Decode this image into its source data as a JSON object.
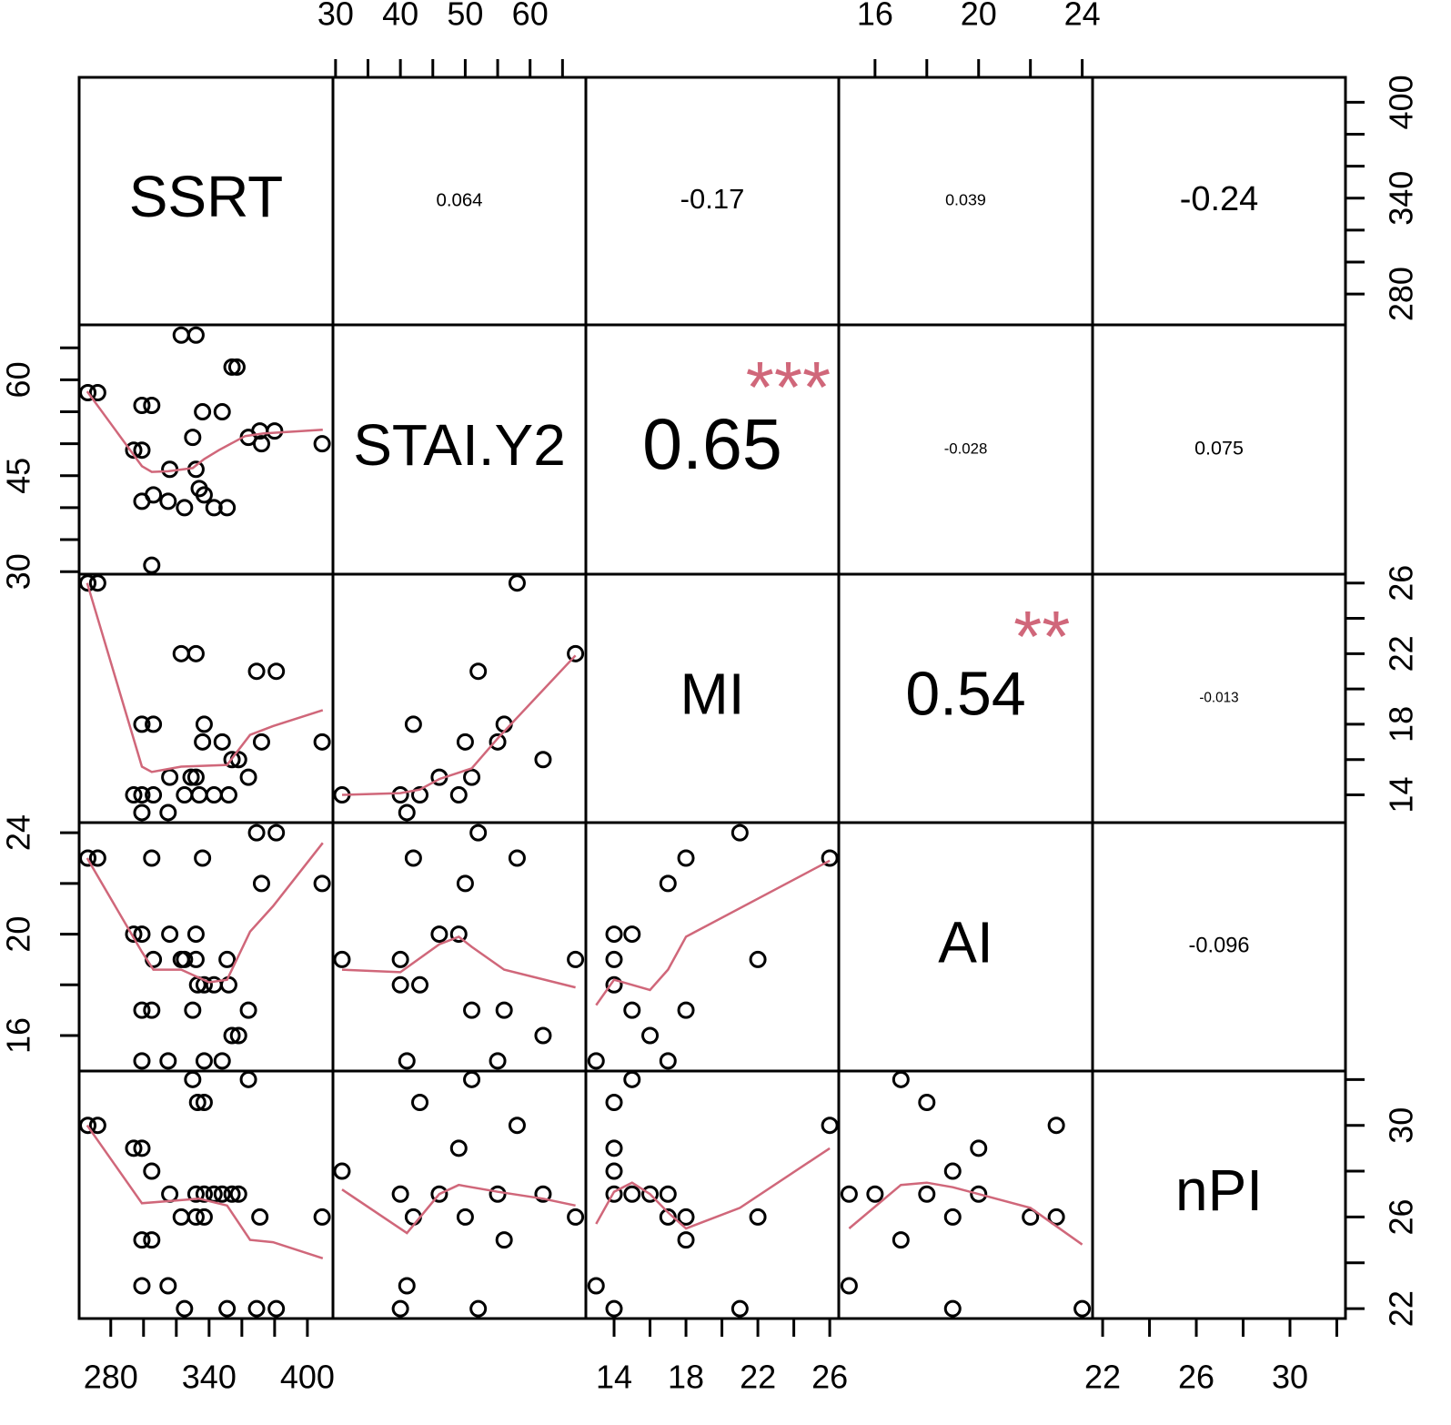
{
  "chart_data": {
    "type": "scatter-matrix",
    "smooth_color": "#d0677a",
    "star_color": "#d0677a",
    "variables": [
      {
        "name": "SSRT",
        "lim": [
          260.7,
          415.6
        ],
        "axes": [
          {
            "side": "bottom",
            "ticks": [
              280,
              340,
              400
            ],
            "minor_ticks": [
              300,
              320,
              360,
              380
            ]
          },
          {
            "side": "right",
            "ticks": [
              280,
              340,
              400
            ],
            "minor_ticks": [
              300,
              320,
              360,
              380
            ]
          }
        ]
      },
      {
        "name": "STAI.Y2",
        "lim": [
          29.6,
          68.6
        ],
        "axes": [
          {
            "side": "top",
            "ticks": [
              30,
              40,
              50,
              60
            ],
            "minor_ticks": [
              35,
              45,
              55,
              65
            ]
          },
          {
            "side": "left",
            "ticks": [
              30,
              45,
              60
            ],
            "minor_ticks": [
              35,
              40,
              50,
              55,
              65
            ]
          }
        ]
      },
      {
        "name": "MI",
        "lim": [
          12.43,
          26.5
        ],
        "axes": [
          {
            "side": "bottom",
            "ticks": [
              14,
              18,
              22,
              26
            ],
            "minor_ticks": [
              16,
              20,
              24
            ]
          },
          {
            "side": "right",
            "ticks": [
              14,
              18,
              22,
              26
            ],
            "minor_ticks": [
              16,
              20,
              24
            ]
          }
        ]
      },
      {
        "name": "AI",
        "lim": [
          14.6,
          24.4
        ],
        "axes": [
          {
            "side": "top",
            "ticks": [
              16,
              20,
              24
            ],
            "minor_ticks": [
              18,
              22
            ]
          },
          {
            "side": "left",
            "ticks": [
              16,
              20,
              24
            ],
            "minor_ticks": [
              18,
              22
            ]
          }
        ]
      },
      {
        "name": "nPI",
        "lim": [
          21.57,
          32.37
        ],
        "axes": [
          {
            "side": "bottom",
            "ticks": [
              22,
              26,
              30
            ],
            "minor_ticks": [
              24,
              28,
              32
            ]
          },
          {
            "side": "right",
            "ticks": [
              22,
              26,
              30
            ],
            "minor_ticks": [
              24,
              28,
              32
            ]
          }
        ]
      }
    ],
    "upper": [
      {
        "row": 0,
        "col": 1,
        "r": 0.064
      },
      {
        "row": 0,
        "col": 2,
        "r": -0.17
      },
      {
        "row": 0,
        "col": 3,
        "r": 0.039
      },
      {
        "row": 0,
        "col": 4,
        "r": -0.24
      },
      {
        "row": 1,
        "col": 2,
        "r": 0.65,
        "stars": "***"
      },
      {
        "row": 1,
        "col": 3,
        "r": -0.028
      },
      {
        "row": 1,
        "col": 4,
        "r": 0.075
      },
      {
        "row": 2,
        "col": 3,
        "r": 0.54,
        "stars": "**"
      },
      {
        "row": 2,
        "col": 4,
        "r": -0.013
      },
      {
        "row": 3,
        "col": 4,
        "r": -0.096
      }
    ],
    "lower": [
      {
        "row": 1,
        "col": 0,
        "x": [
          266,
          272,
          294,
          299,
          299,
          305,
          299,
          306,
          316,
          315,
          323,
          332,
          325,
          330,
          332,
          334,
          336,
          337,
          343,
          348,
          351,
          354,
          357,
          364,
          371,
          372,
          380,
          409,
          305
        ],
        "y": [
          58,
          58,
          49,
          49,
          56,
          56,
          41,
          42,
          46,
          41,
          67,
          67,
          40,
          51,
          46,
          43,
          55,
          42,
          40,
          55,
          40,
          62,
          62,
          51,
          52,
          50,
          52,
          50,
          31
        ],
        "smooth_x": [
          265.6,
          299,
          305,
          315,
          330,
          337,
          346,
          362,
          373,
          409.4
        ],
        "smooth_y": [
          58.2,
          46.5,
          45.6,
          45.7,
          46.2,
          47.6,
          49,
          51.2,
          51.6,
          52.2
        ]
      },
      {
        "row": 2,
        "col": 0,
        "x": [
          266,
          272,
          294,
          299,
          306,
          299,
          315,
          299,
          306,
          323,
          332,
          316,
          329,
          332,
          325,
          337,
          336,
          334,
          343,
          348,
          352,
          354,
          358,
          364,
          369,
          381,
          372,
          409
        ],
        "y": [
          26,
          26,
          14,
          14,
          14,
          13,
          13,
          18,
          18,
          22,
          22,
          15,
          15,
          15,
          14,
          18,
          17,
          14,
          14,
          17,
          14,
          16,
          16,
          15,
          21,
          21,
          17,
          17
        ],
        "smooth_x": [
          265.6,
          299,
          305,
          323,
          351,
          365,
          379,
          409.4
        ],
        "smooth_y": [
          26,
          15.6,
          15.3,
          15.6,
          15.7,
          17.4,
          17.9,
          18.8
        ]
      },
      {
        "row": 3,
        "col": 0,
        "x": [
          266,
          272,
          305,
          294,
          299,
          316,
          332,
          306,
          323,
          325,
          332,
          351,
          336,
          299,
          305,
          330,
          364,
          333,
          337,
          343,
          352,
          354,
          358,
          369,
          381,
          372,
          409,
          299,
          315,
          337,
          348
        ],
        "y": [
          23,
          23,
          23,
          20,
          20,
          20,
          20,
          19,
          19,
          19,
          19,
          19,
          23,
          17,
          17,
          17,
          17,
          18,
          18,
          18,
          18,
          16,
          16,
          24,
          24,
          22,
          22,
          15,
          15,
          15,
          15
        ],
        "smooth_x": [
          265.6,
          299,
          306,
          323,
          340,
          351,
          365,
          379,
          409.4
        ],
        "smooth_y": [
          23,
          19.3,
          18.6,
          18.6,
          18.1,
          18.2,
          20.1,
          21.1,
          23.6
        ]
      },
      {
        "row": 4,
        "col": 0,
        "x": [
          266,
          272,
          294,
          299,
          305,
          316,
          332,
          337,
          343,
          348,
          354,
          358,
          323,
          332,
          337,
          371,
          409,
          299,
          305,
          299,
          315,
          325,
          351,
          369,
          381,
          330,
          333,
          337,
          364
        ],
        "y": [
          30,
          30,
          29,
          29,
          28,
          27,
          27,
          27,
          27,
          27,
          27,
          27,
          26,
          26,
          26,
          26,
          26,
          25,
          25,
          23,
          23,
          22,
          22,
          22,
          22,
          32,
          31,
          31,
          32
        ],
        "smooth_x": [
          265.6,
          299,
          334,
          351,
          365,
          379,
          409.4
        ],
        "smooth_y": [
          30,
          26.6,
          26.8,
          26.5,
          25,
          24.9,
          24.2
        ]
      },
      {
        "row": 2,
        "col": 1,
        "x": [
          31,
          40,
          43,
          41,
          42,
          46,
          49,
          50,
          51,
          52,
          55,
          56,
          58,
          62,
          67
        ],
        "y": [
          14,
          14,
          14,
          13,
          18,
          15,
          14,
          17,
          15,
          21,
          17,
          18,
          26,
          16,
          22
        ],
        "smooth_x": [
          31,
          40,
          43,
          46,
          51,
          55,
          67
        ],
        "smooth_y": [
          14,
          14.1,
          14.3,
          14.9,
          15.5,
          17.2,
          21.9
        ]
      },
      {
        "row": 3,
        "col": 1,
        "x": [
          31,
          40,
          67,
          40,
          43,
          42,
          41,
          46,
          49,
          50,
          52,
          51,
          56,
          55,
          58,
          62
        ],
        "y": [
          19,
          19,
          19,
          18,
          18,
          23,
          15,
          20,
          20,
          22,
          24,
          17,
          17,
          15,
          23,
          16
        ],
        "smooth_x": [
          31,
          40,
          46,
          49,
          51,
          56,
          67
        ],
        "smooth_y": [
          18.6,
          18.5,
          19.6,
          19.9,
          19.5,
          18.6,
          17.9
        ]
      },
      {
        "row": 4,
        "col": 1,
        "x": [
          31,
          40,
          46,
          55,
          62,
          42,
          50,
          67,
          41,
          40,
          52,
          43,
          51,
          49,
          56,
          58
        ],
        "y": [
          28,
          27,
          27,
          27,
          27,
          26,
          26,
          26,
          23,
          22,
          22,
          31,
          32,
          29,
          25,
          30
        ],
        "smooth_x": [
          31,
          41,
          46,
          49,
          55,
          62,
          67
        ],
        "smooth_y": [
          27.2,
          25.3,
          27,
          27.4,
          27.1,
          26.8,
          26.5
        ]
      },
      {
        "row": 3,
        "col": 2,
        "x": [
          13,
          14,
          15,
          14,
          14,
          15,
          16,
          17,
          17,
          18,
          18,
          21,
          22,
          26
        ],
        "y": [
          15,
          20,
          20,
          19,
          18,
          17,
          16,
          22,
          15,
          23,
          17,
          24,
          19,
          23
        ],
        "smooth_x": [
          13,
          14,
          15,
          16,
          17,
          18,
          26
        ],
        "smooth_y": [
          17.2,
          18.2,
          18,
          17.8,
          18.6,
          19.9,
          22.9
        ]
      },
      {
        "row": 4,
        "col": 2,
        "x": [
          13,
          14,
          14,
          15,
          14,
          14,
          14,
          15,
          16,
          17,
          17,
          18,
          18,
          21,
          22,
          26
        ],
        "y": [
          23,
          22,
          31,
          32,
          29,
          28,
          27,
          27,
          27,
          27,
          26,
          26,
          25,
          22,
          26,
          30
        ],
        "smooth_x": [
          13,
          14,
          15,
          16,
          17,
          18,
          21,
          26
        ],
        "smooth_y": [
          25.7,
          27.1,
          27.5,
          27,
          26.2,
          25.5,
          26.4,
          29
        ]
      },
      {
        "row": 4,
        "col": 3,
        "x": [
          15,
          16,
          15,
          17,
          17,
          18,
          18,
          19,
          19,
          19,
          20,
          20,
          22,
          23,
          23,
          24
        ],
        "y": [
          27,
          27,
          23,
          32,
          25,
          31,
          27,
          28,
          26,
          22,
          29,
          27,
          26,
          30,
          26,
          22
        ],
        "smooth_x": [
          15,
          17,
          18,
          19,
          20,
          22,
          24
        ],
        "smooth_y": [
          25.5,
          27.4,
          27.5,
          27.3,
          27,
          26.4,
          24.8
        ]
      }
    ]
  }
}
